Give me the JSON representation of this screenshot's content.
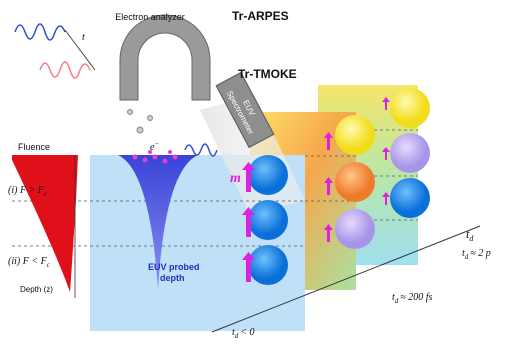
{
  "analyzer": {
    "label": "Electron analyzer",
    "title": "Tr-ARPES"
  },
  "tmoke": {
    "title": "Tr-TMOKE",
    "spectrometer": [
      "EUV",
      "Spectrometer"
    ]
  },
  "electron": {
    "symbol": "e",
    "charge": "−"
  },
  "pulse_delay": "t",
  "fluence": "Fluence",
  "regimes": [
    {
      "index": "(i)",
      "text": "F > F",
      "sub": "c"
    },
    {
      "index": "(ii)",
      "text": "F < F",
      "sub": "c"
    }
  ],
  "depth": "Depth (z)",
  "magnetization": "m",
  "probed": [
    "EUV probed",
    "depth"
  ],
  "time_axis": {
    "label": "t",
    "sub": "d",
    "marks": [
      {
        "t": "t",
        "sub": "d",
        "text": "< 0"
      },
      {
        "t": "t",
        "sub": "d",
        "text": "≈ 200 fs"
      },
      {
        "t": "t",
        "sub": "d",
        "text": "≈ 2 p"
      }
    ]
  }
}
